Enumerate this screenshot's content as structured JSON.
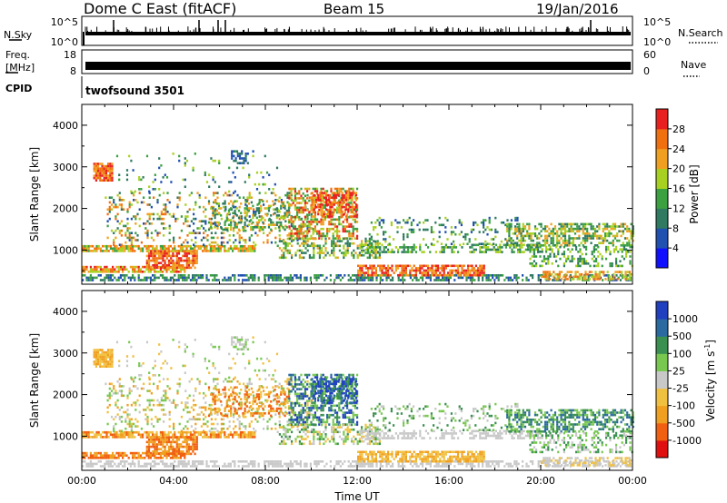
{
  "header": {
    "station": "Dome C East (fitACF)",
    "beam": "Beam 15",
    "date": "19/Jan/2016"
  },
  "top_panels": {
    "nsky_label": "N.Sky",
    "nsky_ticks": [
      "10^5",
      "10^0"
    ],
    "nsearch_label": "N.Search",
    "nsearch_ticks": [
      "10^5",
      "10^0"
    ],
    "freq_label_1": "Freq.",
    "freq_label_2": "[MHz]",
    "freq_ticks": [
      "18",
      "8"
    ],
    "nave_label": "Nave",
    "nave_ticks": [
      "60",
      "0"
    ],
    "cpid_label": "CPID",
    "cpid_value": "twofsound 3501"
  },
  "colors": {
    "power_scale": [
      "#1010ff",
      "#2050b0",
      "#2f7a60",
      "#3aa040",
      "#a8d020",
      "#f0a020",
      "#f07010",
      "#e82020"
    ],
    "velocity_scale": [
      "#e01010",
      "#f06010",
      "#f0a020",
      "#f0c040",
      "#c8c8c8",
      "#78c850",
      "#3a9050",
      "#2a6aa0",
      "#2040c0"
    ]
  },
  "chart_data": [
    {
      "type": "heatmap",
      "panel": "power",
      "xlabel": "",
      "ylabel": "Slant Range [km]",
      "x_range_hours": [
        0,
        24
      ],
      "ylim": [
        180,
        4500
      ],
      "yticks": [
        1000,
        2000,
        3000,
        4000
      ],
      "colorbar_label": "Power [dB]",
      "colorbar_ticks": [
        "4",
        "8",
        "12",
        "16",
        "20",
        "24",
        "28"
      ],
      "colorbar_range": [
        0,
        32
      ]
    },
    {
      "type": "heatmap",
      "panel": "velocity",
      "xlabel": "Time UT",
      "ylabel": "Slant Range [km]",
      "x_range_hours": [
        0,
        24
      ],
      "xticks": [
        "00:00",
        "04:00",
        "08:00",
        "12:00",
        "16:00",
        "20:00",
        "00:00"
      ],
      "ylim": [
        180,
        4500
      ],
      "yticks": [
        1000,
        2000,
        3000,
        4000
      ],
      "colorbar_label": "Velocity [m s",
      "colorbar_label_sup": "-1",
      "colorbar_label_end": "]",
      "colorbar_ticks": [
        "-1000",
        "-500",
        "-100",
        "-25",
        "25",
        "100",
        "500",
        "1000"
      ]
    }
  ]
}
